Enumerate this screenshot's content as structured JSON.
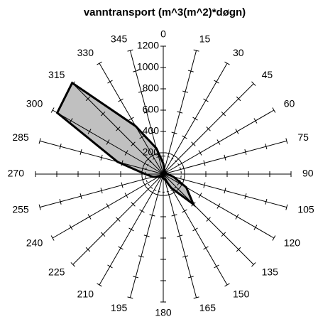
{
  "chart_data": {
    "type": "radar",
    "title": "vanntransport  (m^3(m^2)*døgn)",
    "categories": [
      "0",
      "15",
      "30",
      "45",
      "60",
      "75",
      "90",
      "105",
      "120",
      "135",
      "150",
      "165",
      "180",
      "195",
      "210",
      "225",
      "240",
      "255",
      "270",
      "285",
      "300",
      "315",
      "330",
      "345"
    ],
    "series": [
      {
        "color": "#c0c0c0",
        "fill": true,
        "values": [
          100,
          40,
          30,
          30,
          30,
          30,
          40,
          100,
          250,
          400,
          150,
          50,
          40,
          30,
          30,
          30,
          50,
          100,
          170,
          445,
          1150,
          1210,
          520,
          250
        ]
      },
      {
        "color": "#000000",
        "dashed": true,
        "values": [
          170,
          170,
          170,
          170,
          170,
          170,
          170,
          170,
          170,
          170,
          170,
          170,
          170,
          170,
          170,
          170,
          170,
          170,
          170,
          170,
          170,
          170,
          170,
          170
        ]
      }
    ],
    "ylim": [
      0,
      1200
    ],
    "yticks": [
      200,
      400,
      600,
      800,
      1000,
      1200
    ]
  }
}
